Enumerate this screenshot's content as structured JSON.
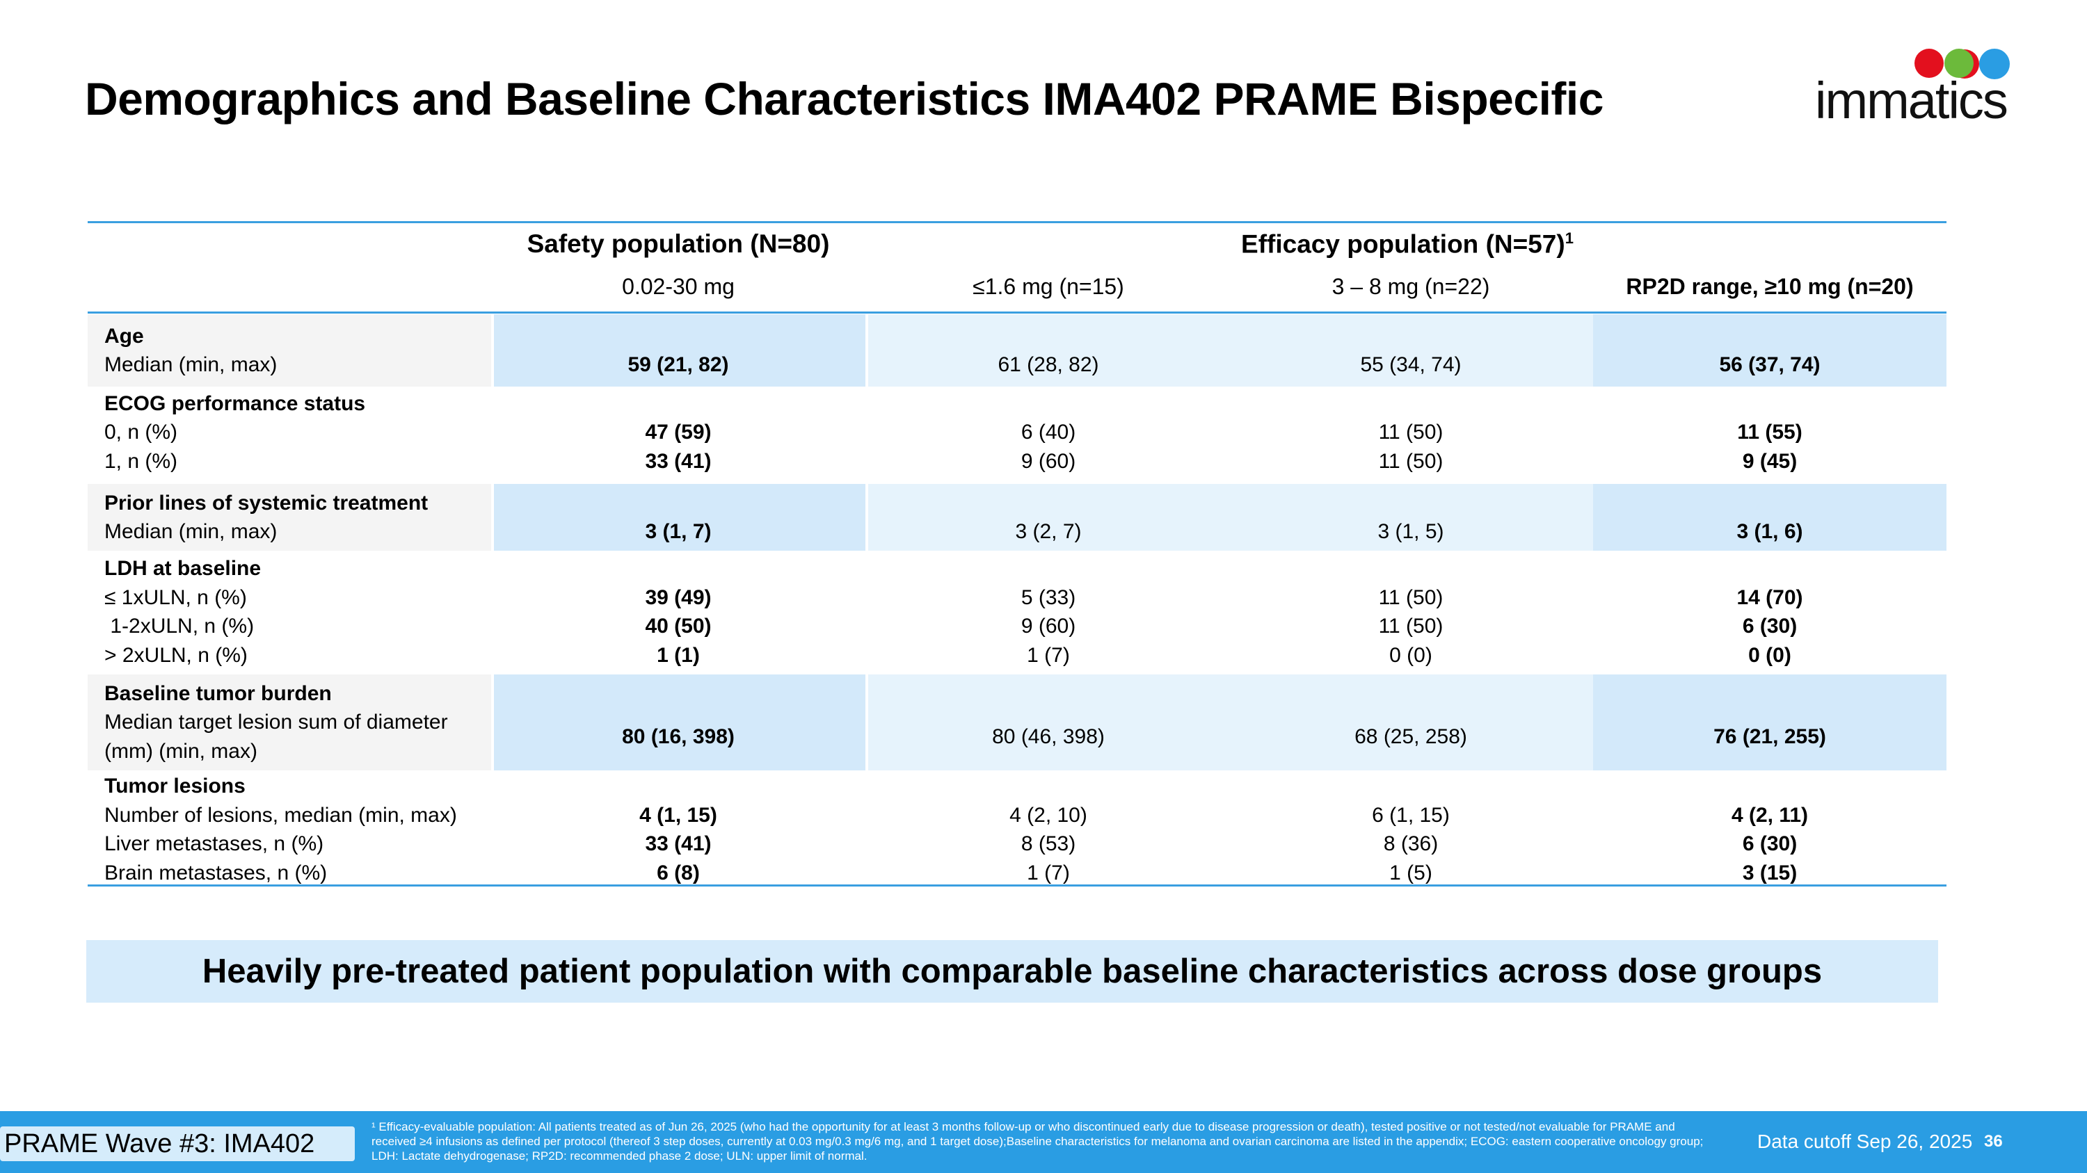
{
  "title": "Demographics and Baseline Characteristics IMA402 PRAME Bispecific",
  "logo": {
    "word": "immatics",
    "mark": "®"
  },
  "table": {
    "group_headers": {
      "safety": "Safety population (N=80)",
      "efficacy": "Efficacy population (N=57)",
      "efficacy_sup": "1"
    },
    "columns": [
      "0.02-30 mg",
      "≤1.6 mg (n=15)",
      "3 – 8 mg (n=22)",
      "RP2D range, ≥10 mg (n=20)"
    ],
    "sections": [
      {
        "heading": "Age",
        "rows": [
          {
            "label": "Median (min, max)",
            "values": [
              "59 (21, 82)",
              "61 (28, 82)",
              "55 (34, 74)",
              "56 (37, 74)"
            ]
          }
        ]
      },
      {
        "heading": "ECOG performance status",
        "rows": [
          {
            "label": "0, n (%)",
            "values": [
              "47 (59)",
              "6 (40)",
              "11 (50)",
              "11 (55)"
            ]
          },
          {
            "label": "1, n (%)",
            "values": [
              "33 (41)",
              "9 (60)",
              "11 (50)",
              "9 (45)"
            ]
          }
        ]
      },
      {
        "heading": "Prior lines of systemic treatment",
        "rows": [
          {
            "label": "Median (min, max)",
            "values": [
              "3 (1, 7)",
              "3 (2, 7)",
              "3 (1, 5)",
              "3 (1, 6)"
            ]
          }
        ]
      },
      {
        "heading": "LDH at baseline",
        "rows": [
          {
            "label": "≤ 1xULN, n (%)",
            "values": [
              "39 (49)",
              "5 (33)",
              "11 (50)",
              "14 (70)"
            ]
          },
          {
            "label": " 1-2xULN, n (%)",
            "values": [
              "40 (50)",
              "9 (60)",
              "11 (50)",
              "6 (30)"
            ]
          },
          {
            "label": "> 2xULN, n (%)",
            "values": [
              "1 (1)",
              "1 (7)",
              "0 (0)",
              "0 (0)"
            ]
          }
        ]
      },
      {
        "heading": "Baseline tumor burden",
        "rows": [
          {
            "label": "Median target lesion sum of diameter\n(mm) (min, max)",
            "values": [
              "80 (16, 398)",
              "80 (46, 398)",
              "68 (25, 258)",
              "76 (21, 255)"
            ]
          }
        ]
      },
      {
        "heading": "Tumor lesions",
        "rows": [
          {
            "label": "Number of lesions, median (min, max)",
            "values": [
              "4 (1, 15)",
              "4 (2, 10)",
              "6 (1, 15)",
              "4 (2, 11)"
            ]
          },
          {
            "label": "Liver metastases, n (%)",
            "values": [
              "33 (41)",
              "8 (53)",
              "8 (36)",
              "6 (30)"
            ]
          },
          {
            "label": "Brain metastases, n (%)",
            "values": [
              "6 (8)",
              "1 (7)",
              "1 (5)",
              "3 (15)"
            ]
          }
        ]
      }
    ]
  },
  "banner": "Heavily pre-treated patient population with comparable baseline characteristics across dose groups",
  "footer": {
    "tag": "PRAME Wave #3: IMA402",
    "footnote": "¹ Efficacy-evaluable population: All patients treated as of Jun 26, 2025 (who had the opportunity for at least 3 months follow-up or who discontinued early due to disease progression or death), tested positive or not tested/not evaluable for PRAME and received ≥4 infusions as defined per protocol (thereof 3 step doses, currently at 0.03 mg/0.3 mg/6 mg, and 1 target dose);Baseline characteristics for melanoma and ovarian carcinoma are listed in the appendix; ECOG: eastern cooperative oncology group; LDH: Lactate dehydrogenase; RP2D: recommended phase 2 dose; ULN: upper limit of normal.",
    "cutoff": "Data cutoff Sep 26, 2025",
    "page": "36"
  },
  "colors": {
    "accent": "#2a9de3",
    "band_dark": "#d3e9fa",
    "band_light": "#e6f3fc",
    "label_band": "#f4f4f4",
    "logo_red": "#e3101e",
    "logo_green": "#6cba3b",
    "logo_blue": "#2a9de3"
  }
}
